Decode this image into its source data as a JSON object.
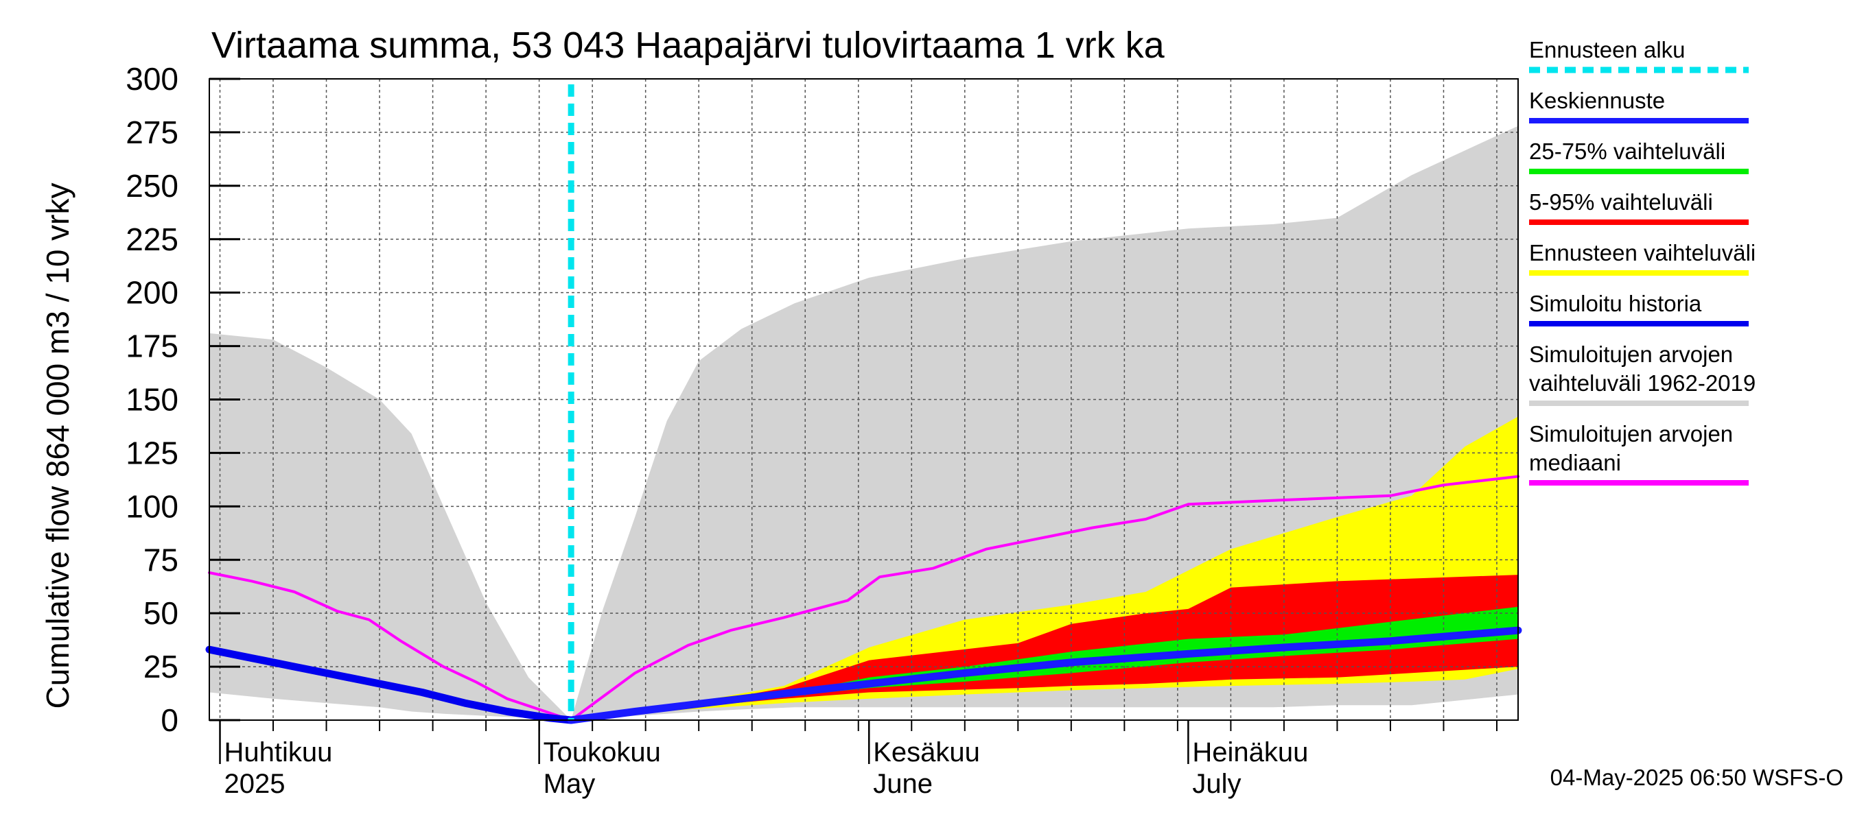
{
  "chart_data": {
    "type": "area",
    "title": "Virtaama summa, 53 043 Haapajärvi tulovirtaama 1 vrk ka",
    "ylabel": "Cumulative flow    864 000 m3 / 10 vrky",
    "ylim": [
      0,
      300
    ],
    "yticks": [
      "0",
      "25",
      "50",
      "75",
      "100",
      "125",
      "150",
      "175",
      "200",
      "225",
      "250",
      "275",
      "300"
    ],
    "xlim": [
      "2025-03-31",
      "2025-08-01"
    ],
    "month_labels": [
      {
        "date": "2025-04-01",
        "fi": "Huhtikuu",
        "en": "2025"
      },
      {
        "date": "2025-05-01",
        "fi": "Toukokuu",
        "en": "May"
      },
      {
        "date": "2025-06-01",
        "fi": "Kesäkuu",
        "en": "June"
      },
      {
        "date": "2025-07-01",
        "fi": "Heinäkuu",
        "en": "July"
      }
    ],
    "forecast_start": "2025-05-04",
    "grid": true,
    "legend_position": "right",
    "legend": [
      {
        "label": "Ennusteen alku",
        "color": "#00e5ee",
        "style": "dashed"
      },
      {
        "label": "Keskiennuste",
        "color": "#1a1aff",
        "style": "line"
      },
      {
        "label": "25-75% vaihteluväli",
        "color": "#00ee00",
        "style": "line"
      },
      {
        "label": "5-95% vaihteluväli",
        "color": "#ff0000",
        "style": "line"
      },
      {
        "label": "Ennusteen vaihteluväli",
        "color": "#ffff00",
        "style": "line"
      },
      {
        "label": "Simuloitu historia",
        "color": "#0000ee",
        "style": "line"
      },
      {
        "label": "Simuloitujen arvojen vaihteluväli 1962-2019",
        "lines": [
          "Simuloitujen arvojen",
          "vaihteluväli 1962-2019"
        ],
        "color": "#d3d3d3",
        "style": "line"
      },
      {
        "label": "Simuloitujen arvojen mediaani",
        "lines": [
          "Simuloitujen arvojen",
          "mediaani"
        ],
        "color": "#ff00ff",
        "style": "line"
      }
    ],
    "series": [
      {
        "name": "Simuloitujen arvojen vaihteluväli 1962-2019",
        "kind": "band",
        "color": "#d3d3d3",
        "x": [
          "2025-03-31",
          "2025-04-06",
          "2025-04-11",
          "2025-04-16",
          "2025-04-19",
          "2025-04-22",
          "2025-04-26",
          "2025-04-30",
          "2025-05-04",
          "2025-05-07",
          "2025-05-10",
          "2025-05-13",
          "2025-05-16",
          "2025-05-20",
          "2025-05-25",
          "2025-06-01",
          "2025-06-10",
          "2025-06-20",
          "2025-07-01",
          "2025-07-09",
          "2025-07-15",
          "2025-07-22",
          "2025-08-01"
        ],
        "low": [
          13,
          10,
          8,
          6,
          4,
          3,
          2,
          1,
          0,
          1,
          2,
          3,
          4,
          5,
          6,
          6,
          6,
          6,
          6,
          6,
          7,
          7,
          12
        ],
        "high": [
          181,
          178,
          165,
          150,
          134,
          100,
          55,
          20,
          0,
          52,
          95,
          140,
          168,
          183,
          195,
          207,
          216,
          224,
          230,
          232,
          235,
          255,
          278
        ]
      },
      {
        "name": "Ennusteen vaihteluväli",
        "kind": "band",
        "color": "#ffff00",
        "x": [
          "2025-05-04",
          "2025-05-15",
          "2025-05-24",
          "2025-06-01",
          "2025-06-10",
          "2025-06-20",
          "2025-06-27",
          "2025-07-05",
          "2025-07-15",
          "2025-07-22",
          "2025-07-27",
          "2025-08-01"
        ],
        "low": [
          0,
          5,
          8,
          10,
          12,
          14,
          15,
          16,
          17,
          18,
          19,
          24
        ],
        "high": [
          0,
          8,
          16,
          34,
          47,
          54,
          60,
          80,
          95,
          105,
          128,
          142
        ]
      },
      {
        "name": "5-95% vaihteluväli",
        "kind": "band",
        "color": "#ff0000",
        "x": [
          "2025-05-04",
          "2025-05-15",
          "2025-05-24",
          "2025-06-01",
          "2025-06-08",
          "2025-06-15",
          "2025-06-20",
          "2025-06-27",
          "2025-07-01",
          "2025-07-05",
          "2025-07-15",
          "2025-08-01"
        ],
        "low": [
          0,
          6,
          10,
          13,
          14,
          15,
          16,
          17,
          18,
          19,
          20,
          25
        ],
        "high": [
          0,
          7,
          15,
          28,
          32,
          36,
          45,
          50,
          52,
          62,
          65,
          68
        ]
      },
      {
        "name": "25-75% vaihteluväli",
        "kind": "band",
        "color": "#00ee00",
        "x": [
          "2025-05-04",
          "2025-05-15",
          "2025-05-24",
          "2025-06-01",
          "2025-06-10",
          "2025-06-20",
          "2025-07-01",
          "2025-07-10",
          "2025-07-20",
          "2025-08-01"
        ],
        "low": [
          0,
          6,
          11,
          15,
          18,
          22,
          27,
          30,
          33,
          38
        ],
        "high": [
          0,
          7,
          12,
          20,
          25,
          32,
          38,
          40,
          46,
          53
        ]
      },
      {
        "name": "Simuloitujen arvojen mediaani",
        "kind": "line",
        "color": "#ff00ff",
        "x": [
          "2025-03-31",
          "2025-04-04",
          "2025-04-08",
          "2025-04-12",
          "2025-04-15",
          "2025-04-18",
          "2025-04-22",
          "2025-04-25",
          "2025-04-28",
          "2025-05-04",
          "2025-05-10",
          "2025-05-15",
          "2025-05-19",
          "2025-05-24",
          "2025-05-30",
          "2025-06-02",
          "2025-06-07",
          "2025-06-12",
          "2025-06-17",
          "2025-06-22",
          "2025-06-27",
          "2025-07-01",
          "2025-07-10",
          "2025-07-20",
          "2025-07-25",
          "2025-08-01"
        ],
        "y": [
          69,
          65,
          60,
          51,
          47,
          37,
          25,
          18,
          10,
          0,
          22,
          35,
          42,
          48,
          56,
          67,
          71,
          80,
          85,
          90,
          94,
          101,
          103,
          105,
          110,
          114
        ]
      },
      {
        "name": "Simuloitu historia",
        "kind": "line",
        "color": "#0000ee",
        "x": [
          "2025-03-31",
          "2025-04-04",
          "2025-04-08",
          "2025-04-12",
          "2025-04-16",
          "2025-04-20",
          "2025-04-24",
          "2025-04-28",
          "2025-05-02",
          "2025-05-04"
        ],
        "y": [
          33,
          29,
          25,
          21,
          17,
          13,
          8,
          4,
          1,
          0
        ]
      },
      {
        "name": "Keskiennuste",
        "kind": "line",
        "color": "#1a1aff",
        "x": [
          "2025-05-04",
          "2025-05-10",
          "2025-05-15",
          "2025-05-20",
          "2025-05-25",
          "2025-06-01",
          "2025-06-10",
          "2025-06-20",
          "2025-07-01",
          "2025-07-10",
          "2025-07-20",
          "2025-08-01"
        ],
        "y": [
          0,
          4,
          7,
          10,
          13,
          17,
          22,
          27,
          31,
          34,
          37,
          42
        ]
      }
    ]
  },
  "footer": {
    "timestamp": "04-May-2025 06:50 WSFS-O"
  }
}
